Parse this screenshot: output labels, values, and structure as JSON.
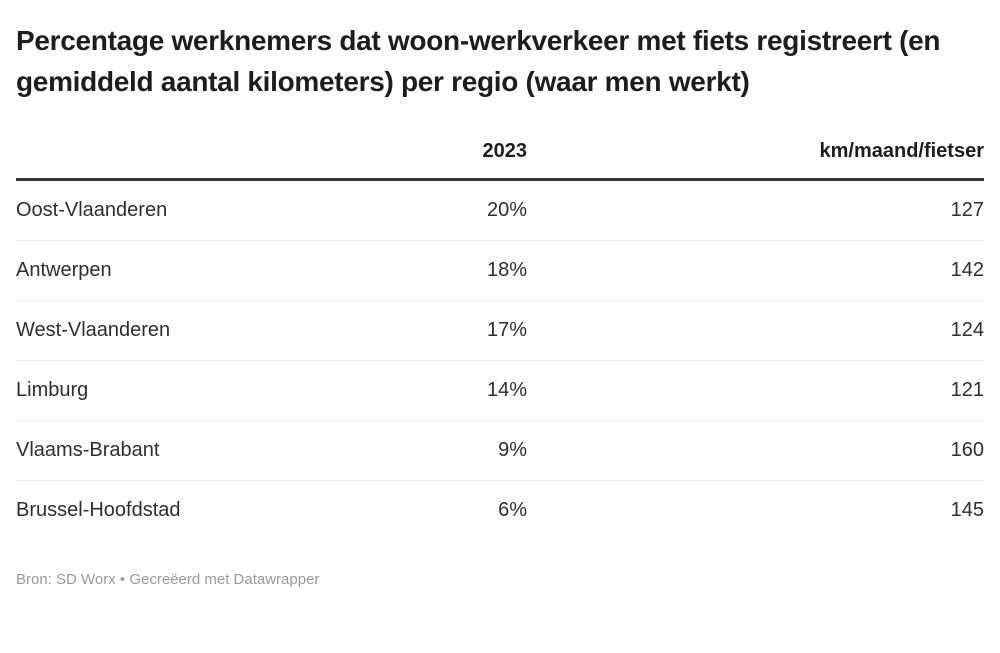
{
  "title": "Percentage werknemers dat woon-werkverkeer met fiets registreert (en gemiddeld aantal kilometers) per regio (waar men werkt)",
  "chart_data": {
    "type": "table",
    "title": "Percentage werknemers dat woon-werkverkeer met fiets registreert (en gemiddeld aantal kilometers) per regio (waar men werkt)",
    "columns": [
      "",
      "2023",
      "km/maand/fietser"
    ],
    "rows": [
      {
        "region": "Oost-Vlaanderen",
        "percent_2023": "20%",
        "km_maand_fietser": "127"
      },
      {
        "region": "Antwerpen",
        "percent_2023": "18%",
        "km_maand_fietser": "142"
      },
      {
        "region": "West-Vlaanderen",
        "percent_2023": "17%",
        "km_maand_fietser": "124"
      },
      {
        "region": "Limburg",
        "percent_2023": "14%",
        "km_maand_fietser": "121"
      },
      {
        "region": "Vlaams-Brabant",
        "percent_2023": "9%",
        "km_maand_fietser": "160"
      },
      {
        "region": "Brussel-Hoofdstad",
        "percent_2023": "6%",
        "km_maand_fietser": "145"
      }
    ],
    "layout": {
      "value_columns_alignment": "right",
      "grid": "horizontal-separators",
      "legend": "none"
    }
  },
  "footer": {
    "source": "Bron: SD Worx • Gecreëerd met Datawrapper"
  },
  "colors": {
    "title_text": "#1d1d1d",
    "body_text": "#2e2e2e",
    "header_rule": "#333333",
    "row_separator": "#eeeeee",
    "footer_text": "#999999",
    "background": "#ffffff"
  }
}
